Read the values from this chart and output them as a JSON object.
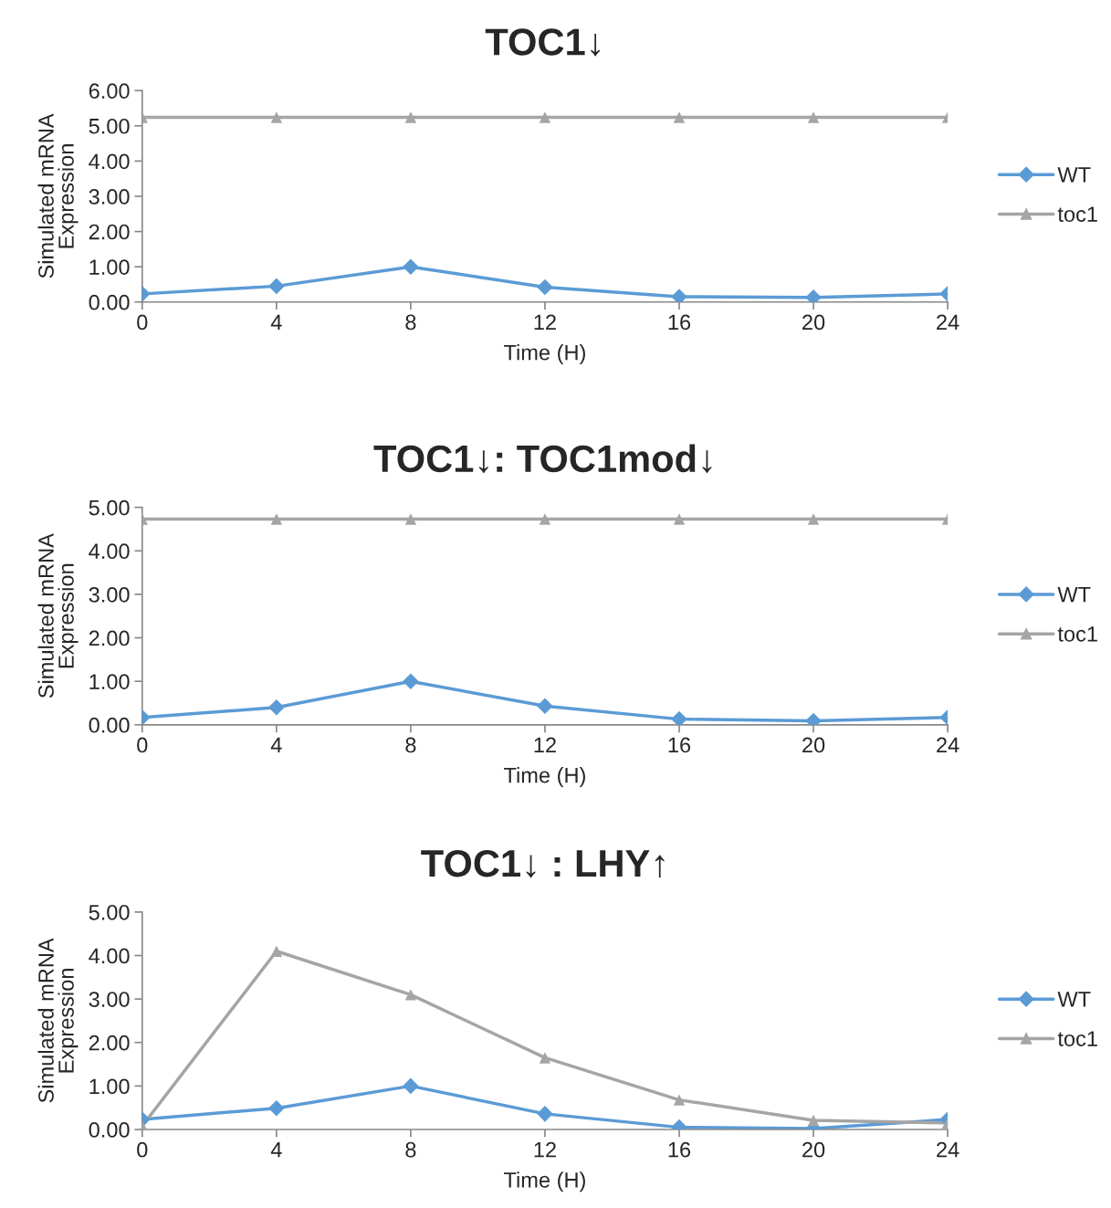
{
  "chart_data": [
    {
      "type": "line",
      "title": "TOC1↓",
      "xlabel": "Time (H)",
      "ylabel": "Simulated mRNA\nExpression",
      "x": [
        0,
        4,
        8,
        12,
        16,
        20,
        24
      ],
      "xlim": [
        0,
        24
      ],
      "xticks": [
        0,
        4,
        8,
        12,
        16,
        20,
        24
      ],
      "ylim": [
        0,
        6
      ],
      "yticks": [
        {
          "value": 0,
          "label": "0.00"
        },
        {
          "value": 1,
          "label": "1.00"
        },
        {
          "value": 2,
          "label": "2.00"
        },
        {
          "value": 3,
          "label": "3.00"
        },
        {
          "value": 4,
          "label": "4.00"
        },
        {
          "value": 5,
          "label": "5.00"
        },
        {
          "value": 6,
          "label": "6.00"
        }
      ],
      "grid": false,
      "legend": "right",
      "series": [
        {
          "name": "WT",
          "color": "#5b9bd5",
          "marker": "diamond",
          "values": [
            0.23,
            0.45,
            1.0,
            0.42,
            0.15,
            0.13,
            0.23
          ]
        },
        {
          "name": "toc1",
          "color": "#a5a5a5",
          "marker": "triangle",
          "values": [
            5.24,
            5.24,
            5.24,
            5.24,
            5.24,
            5.24,
            5.24
          ]
        }
      ]
    },
    {
      "type": "line",
      "title": "TOC1↓: TOC1mod↓",
      "xlabel": "Time (H)",
      "ylabel": "Simulated mRNA\nExpression",
      "x": [
        0,
        4,
        8,
        12,
        16,
        20,
        24
      ],
      "xlim": [
        0,
        24
      ],
      "xticks": [
        0,
        4,
        8,
        12,
        16,
        20,
        24
      ],
      "ylim": [
        0,
        5
      ],
      "yticks": [
        {
          "value": 0,
          "label": "0.00"
        },
        {
          "value": 1,
          "label": "1.00"
        },
        {
          "value": 2,
          "label": "2.00"
        },
        {
          "value": 3,
          "label": "3.00"
        },
        {
          "value": 4,
          "label": "4.00"
        },
        {
          "value": 5,
          "label": "5.00"
        }
      ],
      "grid": false,
      "legend": "right",
      "series": [
        {
          "name": "WT",
          "color": "#5b9bd5",
          "marker": "diamond",
          "values": [
            0.17,
            0.4,
            1.0,
            0.43,
            0.13,
            0.09,
            0.17
          ]
        },
        {
          "name": "toc1",
          "color": "#a5a5a5",
          "marker": "triangle",
          "values": [
            4.73,
            4.73,
            4.73,
            4.73,
            4.73,
            4.73,
            4.73
          ]
        }
      ]
    },
    {
      "type": "line",
      "title": "TOC1↓ : LHY↑",
      "xlabel": "Time (H)",
      "ylabel": "Simulated mRNA\nExpression",
      "x": [
        0,
        4,
        8,
        12,
        16,
        20,
        24
      ],
      "xlim": [
        0,
        24
      ],
      "xticks": [
        0,
        4,
        8,
        12,
        16,
        20,
        24
      ],
      "ylim": [
        0,
        5
      ],
      "yticks": [
        {
          "value": 0,
          "label": "0.00"
        },
        {
          "value": 1,
          "label": "1.00"
        },
        {
          "value": 2,
          "label": "2.00"
        },
        {
          "value": 3,
          "label": "3.00"
        },
        {
          "value": 4,
          "label": "4.00"
        },
        {
          "value": 5,
          "label": "5.00"
        }
      ],
      "grid": false,
      "legend": "right",
      "series": [
        {
          "name": "WT",
          "color": "#5b9bd5",
          "marker": "diamond",
          "values": [
            0.23,
            0.49,
            1.0,
            0.36,
            0.05,
            0.02,
            0.23
          ]
        },
        {
          "name": "toc1",
          "color": "#a5a5a5",
          "marker": "triangle",
          "values": [
            0.08,
            4.1,
            3.1,
            1.65,
            0.68,
            0.21,
            0.15
          ]
        }
      ]
    }
  ]
}
